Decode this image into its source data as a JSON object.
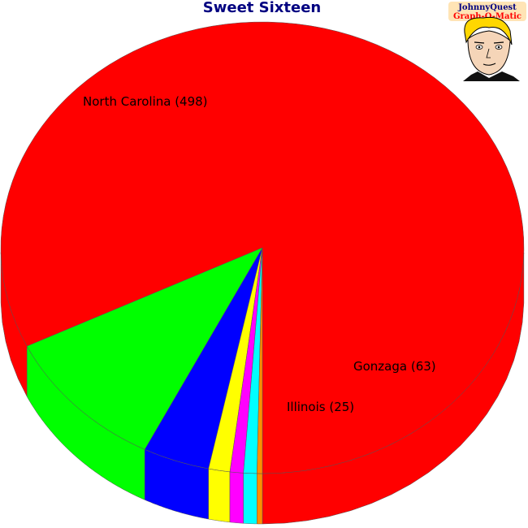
{
  "chart_data": {
    "type": "pie",
    "title": "Sweet Sixteen",
    "slices": [
      {
        "label": "North Carolina (498)",
        "name": "North Carolina",
        "value": 498,
        "color": "#ff0000",
        "show_label": true
      },
      {
        "label": "Gonzaga (63)",
        "name": "Gonzaga",
        "value": 63,
        "color": "#00ff00",
        "show_label": true
      },
      {
        "label": "Illinois (25)",
        "name": "Illinois",
        "value": 25,
        "color": "#0000ff",
        "show_label": true
      },
      {
        "label": "",
        "name": "",
        "value": 8,
        "color": "#ffff00",
        "show_label": false
      },
      {
        "label": "",
        "name": "",
        "value": 5,
        "color": "#ff00ff",
        "show_label": false
      },
      {
        "label": "",
        "name": "",
        "value": 5,
        "color": "#00ffff",
        "show_label": false
      },
      {
        "label": "",
        "name": "",
        "value": 2,
        "color": "#ff8c00",
        "show_label": false
      }
    ]
  },
  "logo": {
    "line1": "JohnnyQuest",
    "line2": "Graph-O-Matic",
    "line1_color": "#000080",
    "line2_color": "#ff0000",
    "background": "#ffe4b5"
  }
}
